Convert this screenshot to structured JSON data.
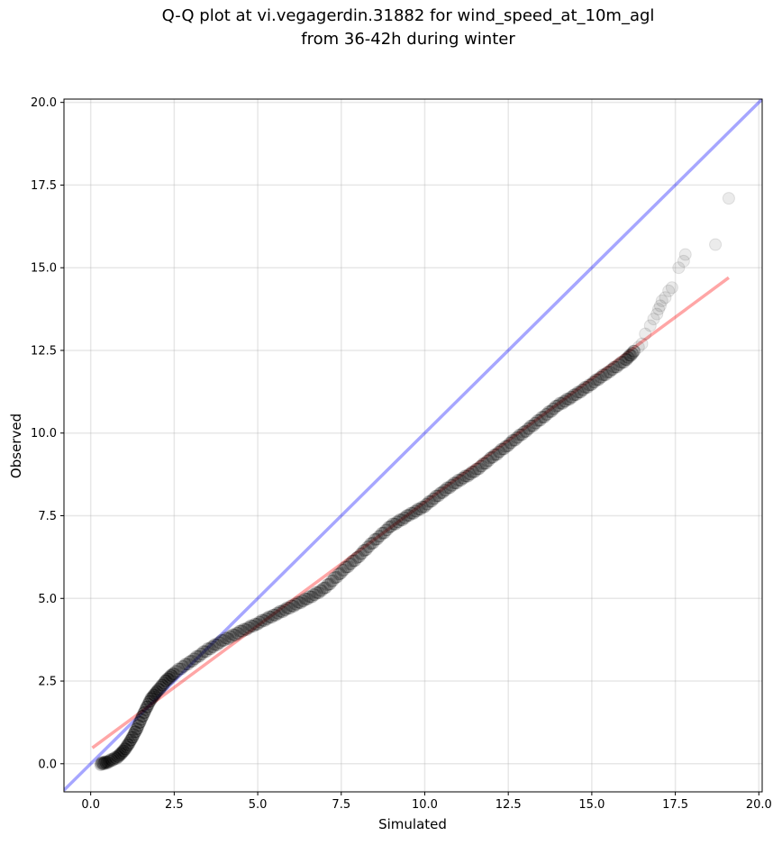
{
  "chart_data": {
    "type": "scatter",
    "title_line1": "Q-Q plot at vi.vegagerdin.31882 for wind_speed_at_10m_agl",
    "title_line2": "from 36-42h during winter",
    "xlabel": "Simulated",
    "ylabel": "Observed",
    "xlim": [
      -0.8,
      20.1
    ],
    "ylim": [
      -0.85,
      20.1
    ],
    "x_ticks": [
      0.0,
      2.5,
      5.0,
      7.5,
      10.0,
      12.5,
      15.0,
      17.5,
      20.0
    ],
    "x_tick_labels": [
      "0.0",
      "2.5",
      "5.0",
      "7.5",
      "10.0",
      "12.5",
      "15.0",
      "17.5",
      "20.0"
    ],
    "y_ticks": [
      0.0,
      2.5,
      5.0,
      7.5,
      10.0,
      12.5,
      15.0,
      17.5,
      20.0
    ],
    "y_tick_labels": [
      "0.0",
      "2.5",
      "5.0",
      "7.5",
      "10.0",
      "12.5",
      "15.0",
      "17.5",
      "20.0"
    ],
    "grid": true,
    "reference_line": {
      "color": "#0000ff",
      "alpha": 0.35,
      "x": [
        -0.8,
        20.1
      ],
      "y": [
        -0.8,
        20.1
      ]
    },
    "fit_line": {
      "color": "#ff0000",
      "alpha": 0.35,
      "x": [
        0.05,
        19.1
      ],
      "y": [
        0.48,
        14.7
      ]
    },
    "point_color": "#000000",
    "quantile_curve": [
      [
        0.3,
        0.0
      ],
      [
        0.5,
        0.05
      ],
      [
        0.8,
        0.2
      ],
      [
        1.0,
        0.4
      ],
      [
        1.2,
        0.7
      ],
      [
        1.4,
        1.1
      ],
      [
        1.6,
        1.55
      ],
      [
        1.8,
        1.95
      ],
      [
        2.0,
        2.2
      ],
      [
        2.25,
        2.5
      ],
      [
        2.5,
        2.75
      ],
      [
        3.0,
        3.1
      ],
      [
        3.5,
        3.45
      ],
      [
        4.0,
        3.75
      ],
      [
        4.5,
        4.0
      ],
      [
        5.0,
        4.25
      ],
      [
        5.5,
        4.5
      ],
      [
        6.0,
        4.75
      ],
      [
        6.5,
        5.0
      ],
      [
        7.0,
        5.3
      ],
      [
        7.5,
        5.8
      ],
      [
        8.0,
        6.25
      ],
      [
        8.5,
        6.75
      ],
      [
        9.0,
        7.2
      ],
      [
        9.5,
        7.5
      ],
      [
        10.0,
        7.8
      ],
      [
        10.5,
        8.2
      ],
      [
        11.0,
        8.55
      ],
      [
        11.5,
        8.85
      ],
      [
        12.0,
        9.25
      ],
      [
        12.5,
        9.65
      ],
      [
        13.0,
        10.05
      ],
      [
        13.5,
        10.45
      ],
      [
        14.0,
        10.85
      ],
      [
        14.5,
        11.15
      ],
      [
        15.0,
        11.5
      ],
      [
        15.5,
        11.85
      ],
      [
        16.0,
        12.2
      ],
      [
        16.3,
        12.5
      ]
    ],
    "tail_points": [
      [
        16.4,
        12.6
      ],
      [
        16.5,
        12.7
      ],
      [
        16.6,
        13.0
      ],
      [
        16.75,
        13.25
      ],
      [
        16.85,
        13.45
      ],
      [
        16.95,
        13.6
      ],
      [
        17.0,
        13.75
      ],
      [
        17.05,
        13.85
      ],
      [
        17.1,
        14.0
      ],
      [
        17.2,
        14.1
      ],
      [
        17.3,
        14.3
      ],
      [
        17.4,
        14.4
      ],
      [
        17.6,
        15.0
      ],
      [
        17.75,
        15.2
      ],
      [
        17.8,
        15.4
      ],
      [
        18.7,
        15.7
      ],
      [
        19.1,
        17.1
      ]
    ]
  }
}
